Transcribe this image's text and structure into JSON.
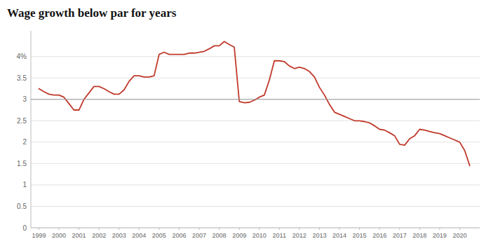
{
  "chart_data": {
    "type": "line",
    "title": "Wage growth below par for years",
    "color": "#c0392b",
    "x": [
      1999.0,
      1999.25,
      1999.5,
      1999.75,
      2000.0,
      2000.25,
      2000.5,
      2000.75,
      2001.0,
      2001.25,
      2001.5,
      2001.75,
      2002.0,
      2002.25,
      2002.5,
      2002.75,
      2003.0,
      2003.25,
      2003.5,
      2003.75,
      2004.0,
      2004.25,
      2004.5,
      2004.75,
      2005.0,
      2005.25,
      2005.5,
      2005.75,
      2006.0,
      2006.25,
      2006.5,
      2006.75,
      2007.0,
      2007.25,
      2007.5,
      2007.75,
      2008.0,
      2008.25,
      2008.5,
      2008.75,
      2009.0,
      2009.25,
      2009.5,
      2009.75,
      2010.0,
      2010.25,
      2010.5,
      2010.75,
      2011.0,
      2011.25,
      2011.5,
      2011.75,
      2012.0,
      2012.25,
      2012.5,
      2012.75,
      2013.0,
      2013.25,
      2013.5,
      2013.75,
      2014.0,
      2014.25,
      2014.5,
      2014.75,
      2015.0,
      2015.25,
      2015.5,
      2015.75,
      2016.0,
      2016.25,
      2016.5,
      2016.75,
      2017.0,
      2017.25,
      2017.5,
      2017.75,
      2018.0,
      2018.25,
      2018.5,
      2018.75,
      2019.0,
      2019.25,
      2019.5,
      2019.75,
      2020.0,
      2020.25,
      2020.5
    ],
    "values": [
      3.25,
      3.18,
      3.12,
      3.1,
      3.1,
      3.05,
      2.9,
      2.75,
      2.75,
      3.0,
      3.15,
      3.3,
      3.3,
      3.25,
      3.18,
      3.12,
      3.12,
      3.22,
      3.42,
      3.55,
      3.55,
      3.52,
      3.52,
      3.55,
      4.05,
      4.1,
      4.05,
      4.05,
      4.05,
      4.05,
      4.08,
      4.08,
      4.1,
      4.12,
      4.18,
      4.25,
      4.25,
      4.35,
      4.28,
      4.22,
      2.95,
      2.92,
      2.93,
      2.98,
      3.05,
      3.1,
      3.45,
      3.9,
      3.9,
      3.88,
      3.78,
      3.72,
      3.75,
      3.72,
      3.65,
      3.52,
      3.28,
      3.1,
      2.88,
      2.7,
      2.65,
      2.6,
      2.55,
      2.5,
      2.5,
      2.48,
      2.45,
      2.38,
      2.3,
      2.28,
      2.22,
      2.15,
      1.95,
      1.93,
      2.08,
      2.15,
      2.3,
      2.28,
      2.25,
      2.22,
      2.2,
      2.15,
      2.1,
      2.05,
      2.0,
      1.8,
      1.45
    ],
    "reference_line": 3.0,
    "xlim": [
      1998.6,
      2021.0
    ],
    "xticks": [
      1999,
      2000,
      2001,
      2002,
      2003,
      2004,
      2005,
      2006,
      2007,
      2008,
      2009,
      2010,
      2011,
      2012,
      2013,
      2014,
      2015,
      2016,
      2017,
      2018,
      2019,
      2020
    ],
    "ylim": [
      0,
      4.6
    ],
    "yticks": [
      0,
      0.5,
      1,
      1.5,
      2,
      2.5,
      3,
      3.5,
      {
        "value": 4,
        "label": "4%"
      }
    ],
    "grid": true
  }
}
